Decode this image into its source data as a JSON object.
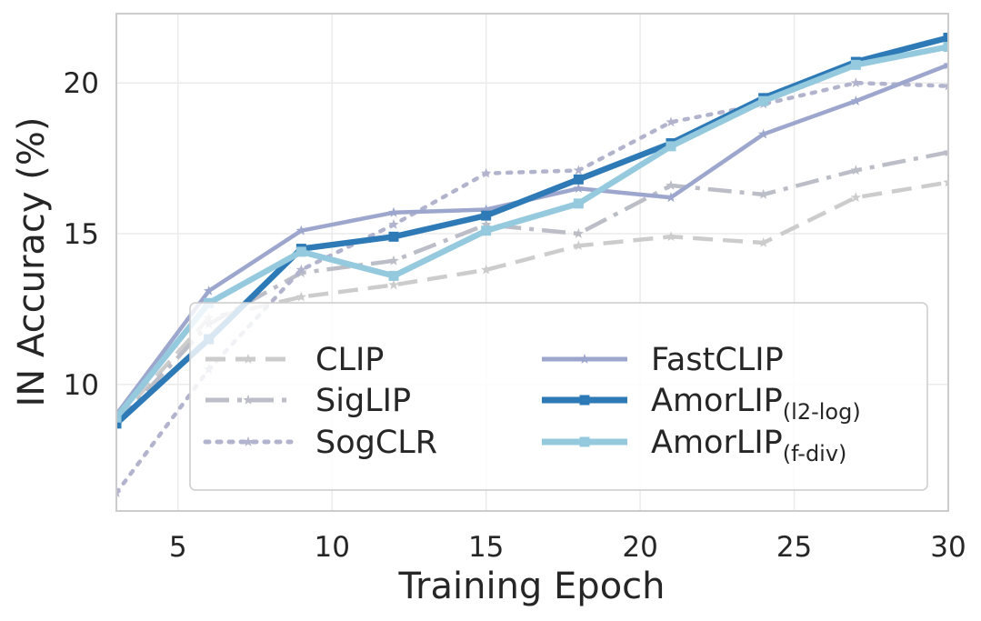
{
  "chart_data": {
    "type": "line",
    "title": "",
    "xlabel": "Training Epoch",
    "ylabel": "IN Accuracy (%)",
    "xlim": [
      3,
      30
    ],
    "ylim": [
      5.8,
      22.3
    ],
    "xticks": [
      "5",
      "10",
      "15",
      "20",
      "25",
      "30"
    ],
    "yticks": [
      "10",
      "15",
      "20"
    ],
    "grid": true,
    "legend_position": "lower-right",
    "x": [
      3,
      6,
      9,
      12,
      15,
      18,
      21,
      24,
      27,
      30
    ],
    "series": [
      {
        "name": "CLIP",
        "sub": "",
        "color": "#cccccc",
        "linestyle": "dashed",
        "marker": "star",
        "values": [
          8.8,
          12.2,
          12.9,
          13.3,
          13.8,
          14.6,
          14.9,
          14.7,
          16.2,
          16.7
        ]
      },
      {
        "name": "SigLIP",
        "sub": "",
        "color": "#bbbdc7",
        "linestyle": "dashdot",
        "marker": "star",
        "values": [
          8.7,
          12.0,
          13.7,
          14.1,
          15.3,
          15.0,
          16.6,
          16.3,
          17.1,
          17.7
        ]
      },
      {
        "name": "SogCLR",
        "sub": "",
        "color": "#b2b4cd",
        "linestyle": "dotted",
        "marker": "star",
        "values": [
          6.4,
          10.5,
          13.8,
          15.3,
          17.0,
          17.1,
          18.7,
          19.3,
          20.0,
          19.9
        ]
      },
      {
        "name": "FastCLIP",
        "sub": "",
        "color": "#9da6cc",
        "linestyle": "solid",
        "marker": "star",
        "values": [
          9.0,
          13.1,
          15.1,
          15.7,
          15.8,
          16.5,
          16.2,
          18.3,
          19.4,
          20.6
        ]
      },
      {
        "name": "AmorLIP",
        "sub": "(l2-log)",
        "color": "#2e7ab7",
        "linestyle": "solid",
        "marker": "square",
        "values": [
          8.7,
          11.5,
          14.5,
          14.9,
          15.6,
          16.8,
          18.0,
          19.5,
          20.7,
          21.5
        ]
      },
      {
        "name": "AmorLIP",
        "sub": "(f-div)",
        "color": "#94c9de",
        "linestyle": "solid",
        "marker": "square",
        "values": [
          8.9,
          12.7,
          14.4,
          13.6,
          15.1,
          16.0,
          17.9,
          19.4,
          20.6,
          21.2
        ]
      }
    ]
  }
}
